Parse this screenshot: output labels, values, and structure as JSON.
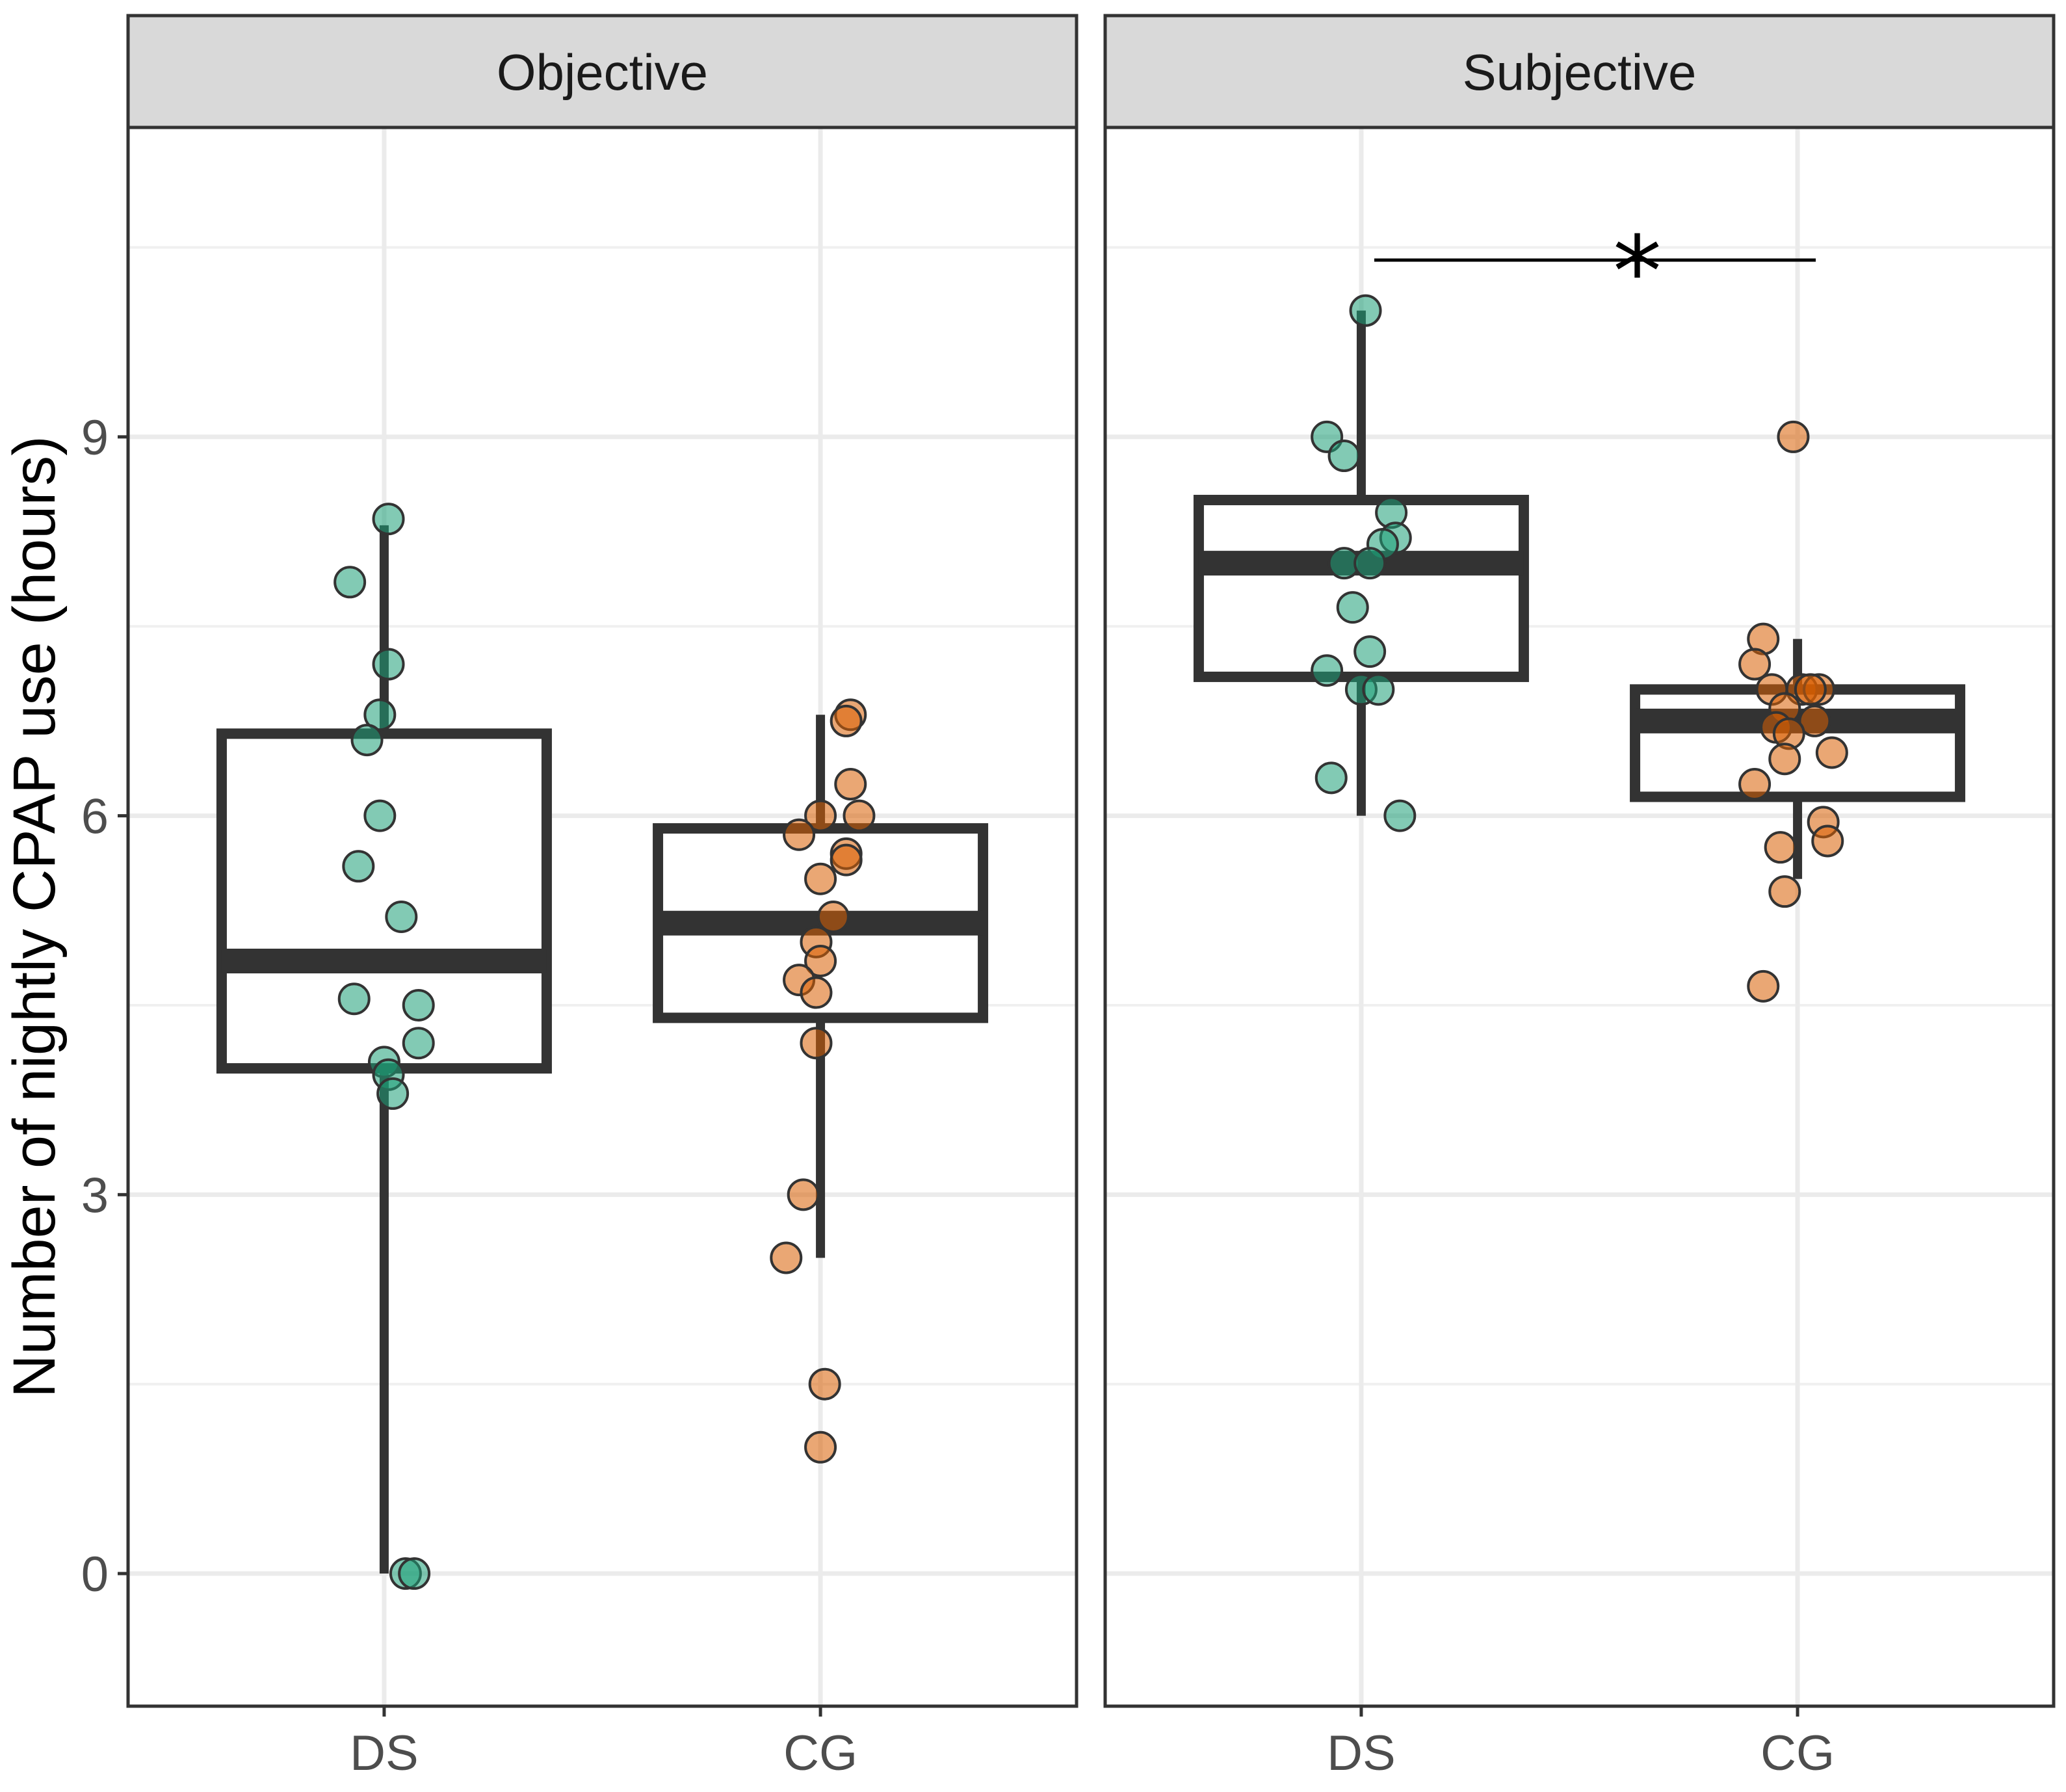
{
  "chart_data": {
    "type": "boxplot",
    "ylabel": "Number of nightly CPAP use (hours)",
    "xlabel": "",
    "ylim": [
      -1.05,
      11.45
    ],
    "yticks": [
      0,
      3,
      6,
      9
    ],
    "categories": [
      "DS",
      "CG"
    ],
    "colors": {
      "DS": "#1b9e77",
      "CG": "#d95f02"
    },
    "panels": [
      {
        "name": "Objective",
        "boxes": [
          {
            "group": "DS",
            "q1": 4.0,
            "median": 4.85,
            "q3": 6.65,
            "whisker_low": 0.0,
            "whisker_high": 8.3,
            "points": [
              {
                "y": 8.35,
                "jitter": 0.01
              },
              {
                "y": 7.85,
                "jitter": -0.08
              },
              {
                "y": 7.2,
                "jitter": 0.01
              },
              {
                "y": 6.8,
                "jitter": -0.01
              },
              {
                "y": 6.6,
                "jitter": -0.04
              },
              {
                "y": 6.0,
                "jitter": -0.01
              },
              {
                "y": 5.6,
                "jitter": -0.06
              },
              {
                "y": 5.2,
                "jitter": 0.04
              },
              {
                "y": 4.55,
                "jitter": -0.07
              },
              {
                "y": 4.5,
                "jitter": 0.08
              },
              {
                "y": 4.2,
                "jitter": 0.08
              },
              {
                "y": 4.05,
                "jitter": 0.0
              },
              {
                "y": 3.95,
                "jitter": 0.01
              },
              {
                "y": 3.8,
                "jitter": 0.02
              },
              {
                "y": 0.0,
                "jitter": 0.05
              },
              {
                "y": 0.0,
                "jitter": 0.07
              }
            ]
          },
          {
            "group": "CG",
            "q1": 4.4,
            "median": 5.15,
            "q3": 5.9,
            "whisker_low": 2.5,
            "whisker_high": 6.8,
            "points": [
              {
                "y": 6.8,
                "jitter": 0.07
              },
              {
                "y": 6.75,
                "jitter": 0.06
              },
              {
                "y": 6.25,
                "jitter": 0.07
              },
              {
                "y": 6.0,
                "jitter": 0.0
              },
              {
                "y": 6.0,
                "jitter": 0.09
              },
              {
                "y": 5.85,
                "jitter": -0.05
              },
              {
                "y": 5.7,
                "jitter": 0.06
              },
              {
                "y": 5.65,
                "jitter": 0.06
              },
              {
                "y": 5.5,
                "jitter": 0.0
              },
              {
                "y": 5.2,
                "jitter": 0.03
              },
              {
                "y": 5.0,
                "jitter": -0.01
              },
              {
                "y": 4.85,
                "jitter": 0.0
              },
              {
                "y": 4.7,
                "jitter": -0.05
              },
              {
                "y": 4.6,
                "jitter": -0.01
              },
              {
                "y": 4.2,
                "jitter": -0.01
              },
              {
                "y": 3.0,
                "jitter": -0.04
              },
              {
                "y": 2.5,
                "jitter": -0.08
              },
              {
                "y": 1.5,
                "jitter": 0.01
              },
              {
                "y": 1.0,
                "jitter": 0.0
              }
            ]
          }
        ]
      },
      {
        "name": "Subjective",
        "boxes": [
          {
            "group": "DS",
            "q1": 7.1,
            "median": 8.0,
            "q3": 8.5,
            "whisker_low": 6.0,
            "whisker_high": 10.0,
            "points": [
              {
                "y": 10.0,
                "jitter": 0.01
              },
              {
                "y": 9.0,
                "jitter": -0.08
              },
              {
                "y": 8.85,
                "jitter": -0.04
              },
              {
                "y": 8.4,
                "jitter": 0.07
              },
              {
                "y": 8.2,
                "jitter": 0.08
              },
              {
                "y": 8.15,
                "jitter": 0.05
              },
              {
                "y": 8.0,
                "jitter": -0.04
              },
              {
                "y": 8.0,
                "jitter": 0.02
              },
              {
                "y": 7.65,
                "jitter": -0.02
              },
              {
                "y": 7.3,
                "jitter": 0.02
              },
              {
                "y": 7.15,
                "jitter": -0.08
              },
              {
                "y": 7.0,
                "jitter": 0.0
              },
              {
                "y": 7.0,
                "jitter": 0.04
              },
              {
                "y": 6.3,
                "jitter": -0.07
              },
              {
                "y": 6.0,
                "jitter": 0.09
              }
            ]
          },
          {
            "group": "CG",
            "q1": 6.15,
            "median": 6.75,
            "q3": 7.0,
            "whisker_low": 5.5,
            "whisker_high": 7.4,
            "points": [
              {
                "y": 9.0,
                "jitter": -0.01
              },
              {
                "y": 7.4,
                "jitter": -0.08
              },
              {
                "y": 7.2,
                "jitter": -0.1
              },
              {
                "y": 7.0,
                "jitter": -0.06
              },
              {
                "y": 7.0,
                "jitter": 0.01
              },
              {
                "y": 7.0,
                "jitter": 0.05
              },
              {
                "y": 7.0,
                "jitter": 0.03
              },
              {
                "y": 6.85,
                "jitter": -0.03
              },
              {
                "y": 6.75,
                "jitter": 0.04
              },
              {
                "y": 6.7,
                "jitter": -0.05
              },
              {
                "y": 6.65,
                "jitter": -0.02
              },
              {
                "y": 6.5,
                "jitter": 0.08
              },
              {
                "y": 6.45,
                "jitter": -0.03
              },
              {
                "y": 6.25,
                "jitter": -0.1
              },
              {
                "y": 5.95,
                "jitter": 0.06
              },
              {
                "y": 5.8,
                "jitter": 0.07
              },
              {
                "y": 5.75,
                "jitter": -0.04
              },
              {
                "y": 5.4,
                "jitter": -0.03
              },
              {
                "y": 4.65,
                "jitter": -0.08
              }
            ]
          }
        ]
      }
    ],
    "annotations": [
      {
        "panel": "Subjective",
        "text": "*",
        "from": "DS",
        "to": "CG",
        "y": 10.4
      }
    ]
  }
}
